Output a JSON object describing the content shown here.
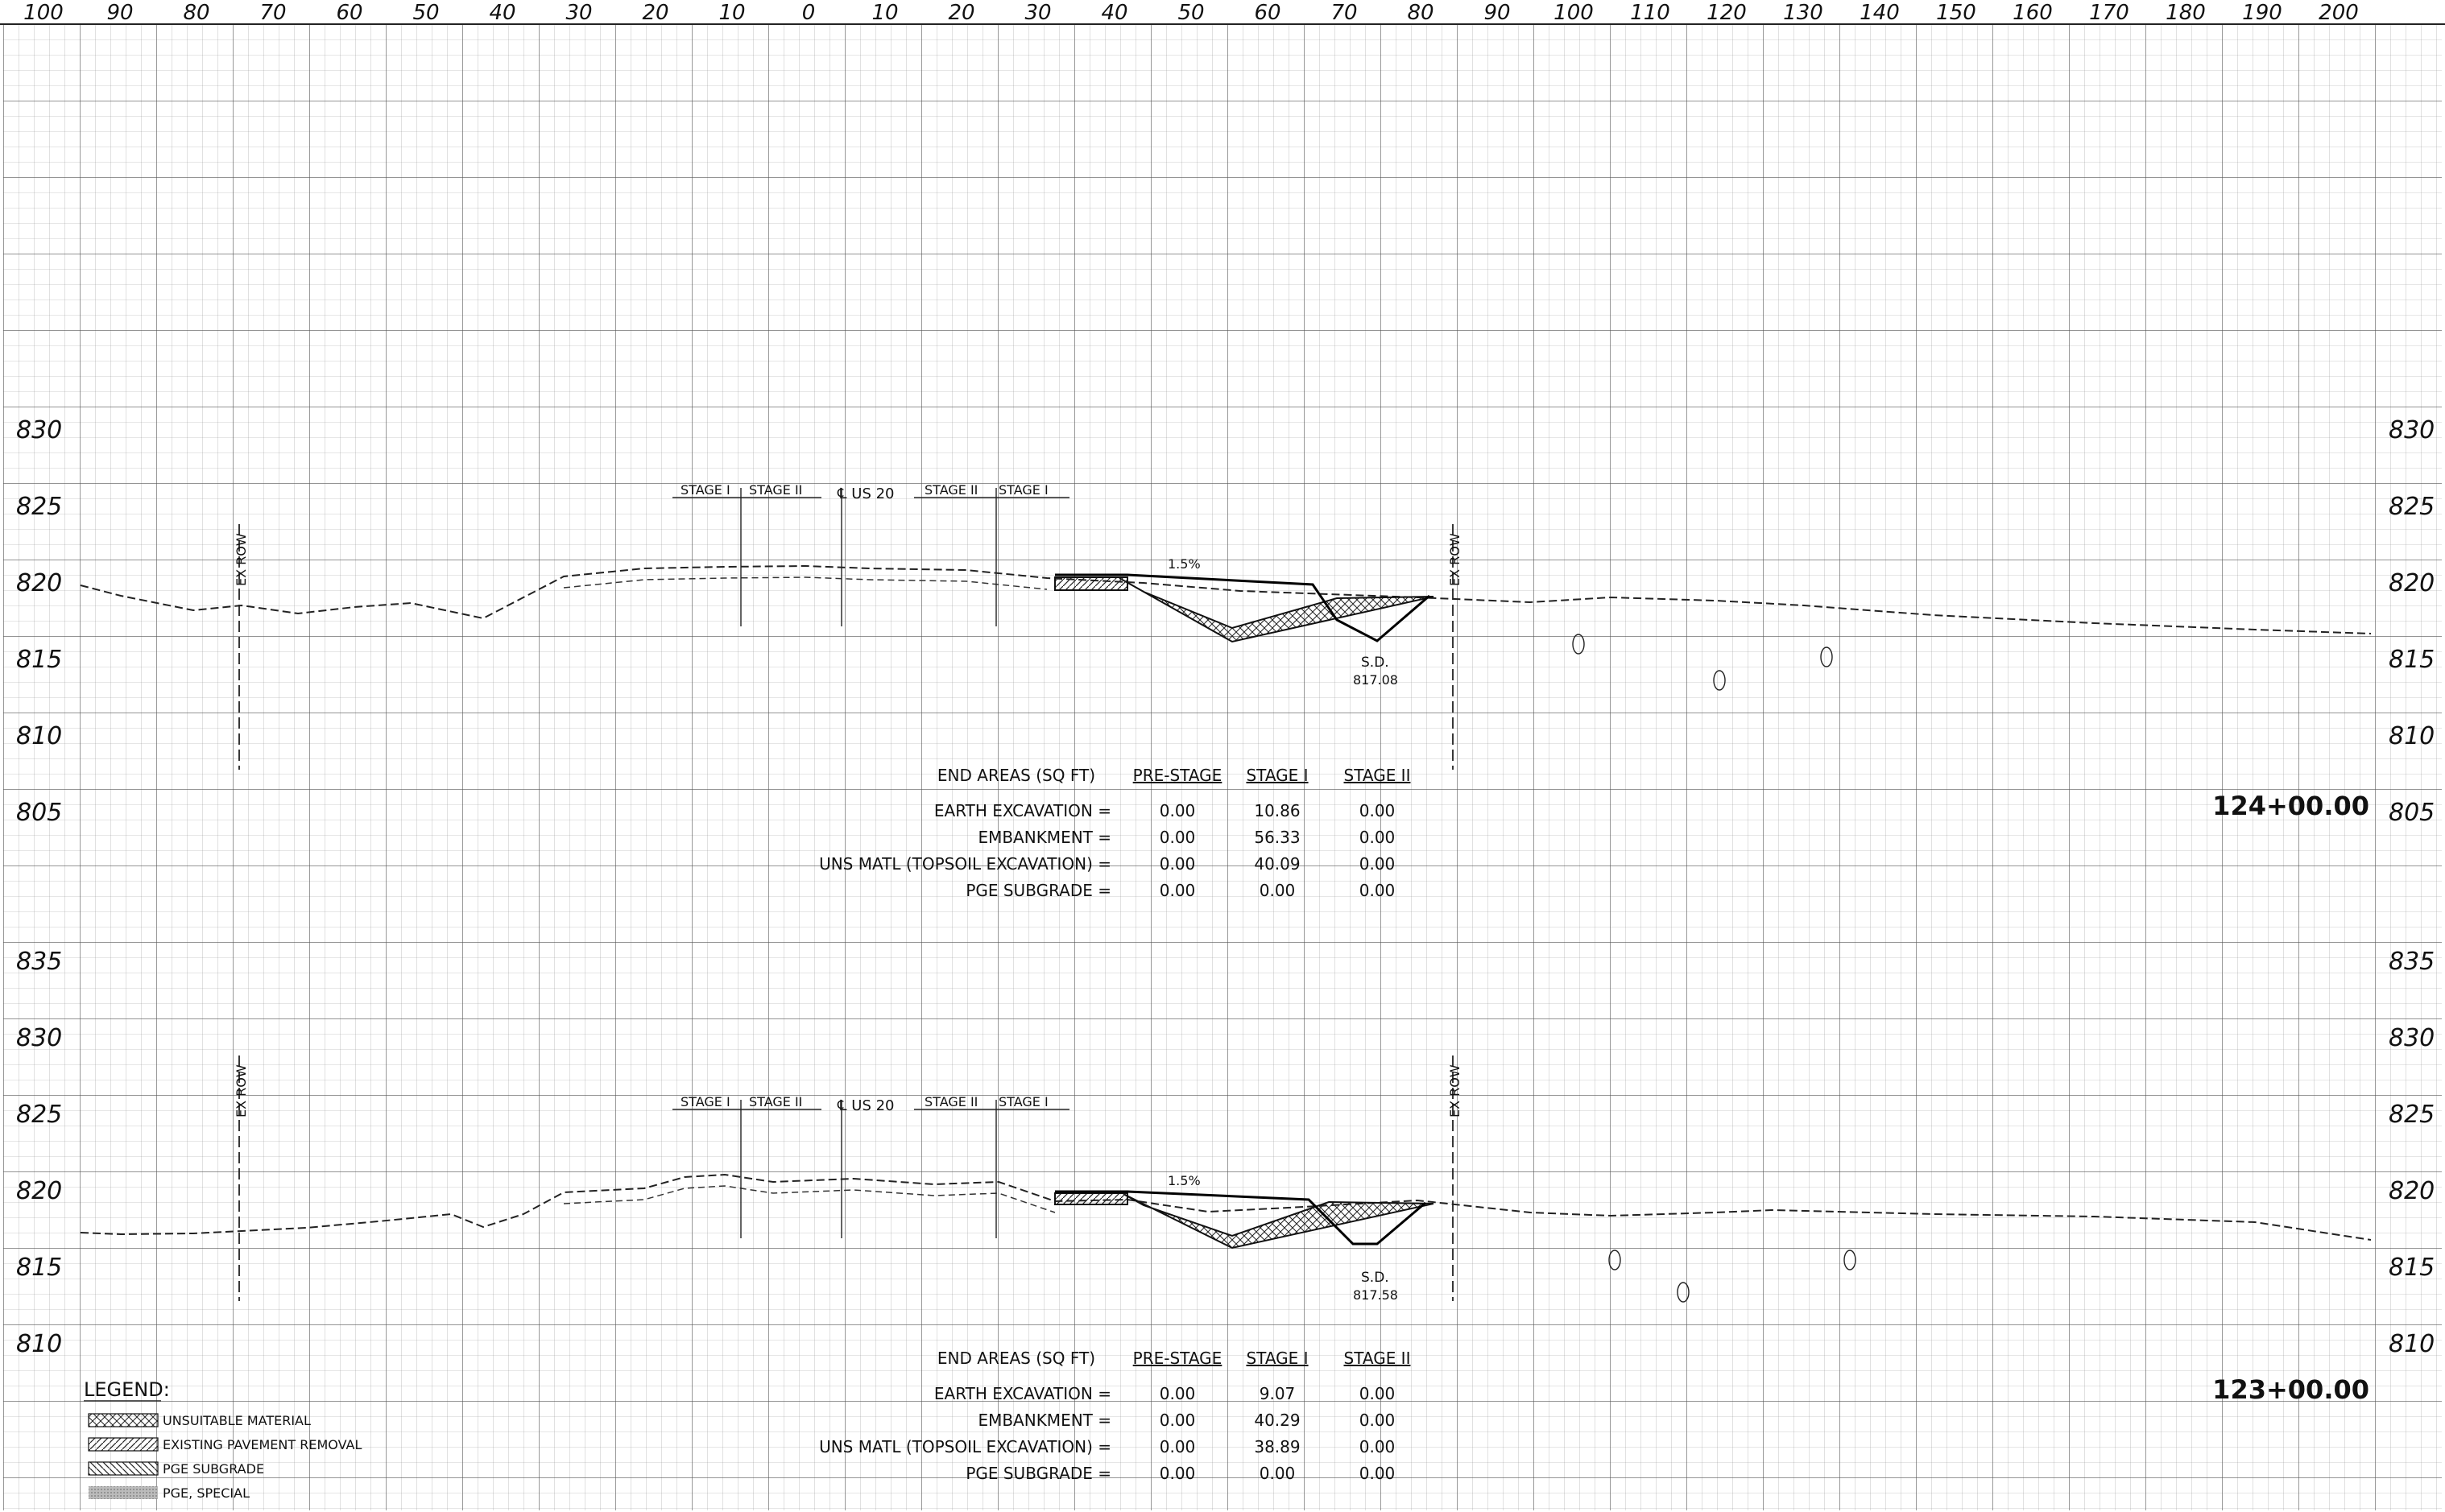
{
  "offset_labels": [
    "100",
    "90",
    "80",
    "70",
    "60",
    "50",
    "40",
    "30",
    "20",
    "10",
    "0",
    "10",
    "20",
    "30",
    "40",
    "50",
    "60",
    "70",
    "80",
    "90",
    "100",
    "110",
    "120",
    "130",
    "140",
    "150",
    "160",
    "170",
    "180",
    "190",
    "200"
  ],
  "sections": [
    {
      "station": "124+00.00",
      "elevation_labels": [
        "830",
        "825",
        "820",
        "815",
        "810",
        "805"
      ],
      "stage_left": "STAGE I",
      "stage_left2": "STAGE II",
      "centerline": "℄ US 20",
      "stage_right": "STAGE II",
      "stage_right2": "STAGE I",
      "ex_row": "EX ROW",
      "slope": "1.5%",
      "sd_label": "S.D.",
      "sd_elev": "817.08",
      "end_areas": {
        "header": [
          "END AREAS (SQ FT)",
          "PRE-STAGE",
          "STAGE I",
          "STAGE II"
        ],
        "rows": [
          {
            "label": "EARTH EXCAVATION =",
            "pre": "0.00",
            "s1": "10.86",
            "s2": "0.00"
          },
          {
            "label": "EMBANKMENT =",
            "pre": "0.00",
            "s1": "56.33",
            "s2": "0.00"
          },
          {
            "label": "UNS MATL (TOPSOIL EXCAVATION) =",
            "pre": "0.00",
            "s1": "40.09",
            "s2": "0.00"
          },
          {
            "label": "PGE SUBGRADE =",
            "pre": "0.00",
            "s1": "0.00",
            "s2": "0.00"
          }
        ]
      }
    },
    {
      "station": "123+00.00",
      "elevation_labels": [
        "835",
        "830",
        "825",
        "820",
        "815",
        "810"
      ],
      "stage_left": "STAGE I",
      "stage_left2": "STAGE II",
      "centerline": "℄ US 20",
      "stage_right": "STAGE II",
      "stage_right2": "STAGE I",
      "ex_row": "EX ROW",
      "slope": "1.5%",
      "sd_label": "S.D.",
      "sd_elev": "817.58",
      "end_areas": {
        "header": [
          "END AREAS (SQ FT)",
          "PRE-STAGE",
          "STAGE I",
          "STAGE II"
        ],
        "rows": [
          {
            "label": "EARTH EXCAVATION =",
            "pre": "0.00",
            "s1": "9.07",
            "s2": "0.00"
          },
          {
            "label": "EMBANKMENT =",
            "pre": "0.00",
            "s1": "40.29",
            "s2": "0.00"
          },
          {
            "label": "UNS MATL (TOPSOIL EXCAVATION) =",
            "pre": "0.00",
            "s1": "38.89",
            "s2": "0.00"
          },
          {
            "label": "PGE SUBGRADE =",
            "pre": "0.00",
            "s1": "0.00",
            "s2": "0.00"
          }
        ]
      }
    }
  ],
  "legend": {
    "title": "LEGEND:",
    "items": [
      {
        "label": "UNSUITABLE MATERIAL",
        "pattern": "crosshatch"
      },
      {
        "label": "EXISTING PAVEMENT REMOVAL",
        "pattern": "diagonal"
      },
      {
        "label": "PGE SUBGRADE",
        "pattern": "backdiagonal"
      },
      {
        "label": "PGE, SPECIAL",
        "pattern": "shaded"
      }
    ]
  }
}
